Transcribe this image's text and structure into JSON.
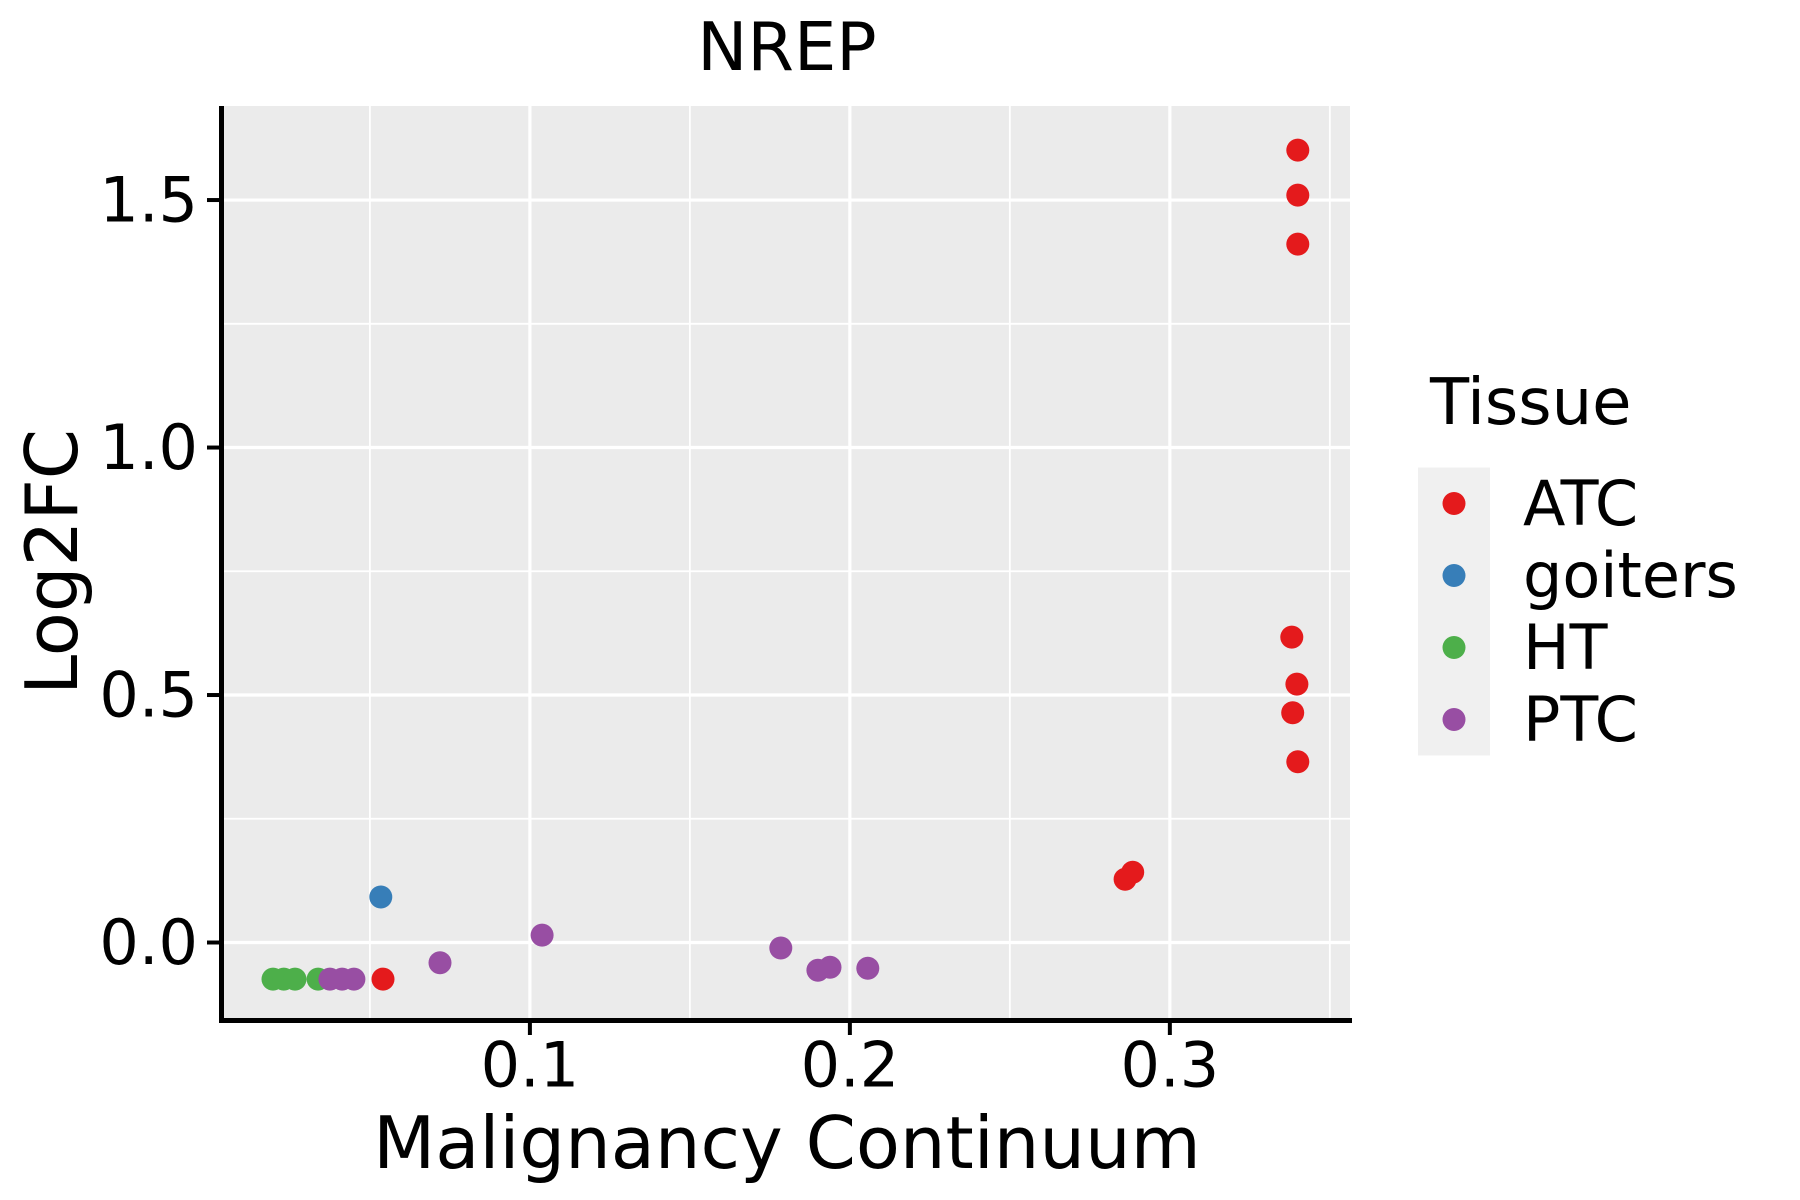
{
  "chart_data": {
    "type": "scatter",
    "title": "NREP",
    "xlabel": "Malignancy Continuum",
    "ylabel": "Log2FC",
    "legend_title": "Tissue",
    "legend_position": "right",
    "panel_background": "#EBEBEB",
    "legend_key_background": "#F0F0F0",
    "grid_color": "#FFFFFF",
    "xlim": [
      0.0044,
      0.3563
    ],
    "ylim": [
      -0.1525,
      1.69
    ],
    "xticks": [
      0.1,
      0.2,
      0.3
    ],
    "xtick_labels": [
      "0.1",
      "0.2",
      "0.3"
    ],
    "yticks": [
      0.0,
      0.5,
      1.0,
      1.5
    ],
    "ytick_labels": [
      "0.0",
      "0.5",
      "1.0",
      "1.5"
    ],
    "x_minor_ticks": [
      0.05,
      0.15,
      0.25,
      0.35
    ],
    "y_minor_ticks": [
      0.25,
      0.75,
      1.25
    ],
    "series": [
      {
        "name": "ATC",
        "color": "#E41A1C",
        "points": [
          [
            0.34,
            1.601
          ],
          [
            0.34,
            1.51
          ],
          [
            0.34,
            1.411
          ],
          [
            0.3381,
            0.617
          ],
          [
            0.3397,
            0.522
          ],
          [
            0.3384,
            0.464
          ],
          [
            0.34,
            0.365
          ],
          [
            0.2884,
            0.142
          ],
          [
            0.286,
            0.128
          ],
          [
            0.0541,
            -0.074
          ]
        ]
      },
      {
        "name": "goiters",
        "color": "#377EB8",
        "points": [
          [
            0.0534,
            0.092
          ]
        ]
      },
      {
        "name": "HT",
        "color": "#4DAF4A",
        "points": [
          [
            0.0197,
            -0.074
          ],
          [
            0.0231,
            -0.074
          ],
          [
            0.0266,
            -0.074
          ],
          [
            0.0338,
            -0.074
          ]
        ]
      },
      {
        "name": "PTC",
        "color": "#984EA3",
        "points": [
          [
            0.0375,
            -0.074
          ],
          [
            0.0413,
            -0.074
          ],
          [
            0.045,
            -0.074
          ],
          [
            0.0719,
            -0.041
          ],
          [
            0.1038,
            0.015
          ],
          [
            0.1784,
            -0.011
          ],
          [
            0.19,
            -0.056
          ],
          [
            0.1938,
            -0.05
          ],
          [
            0.2056,
            -0.052
          ]
        ]
      }
    ]
  }
}
